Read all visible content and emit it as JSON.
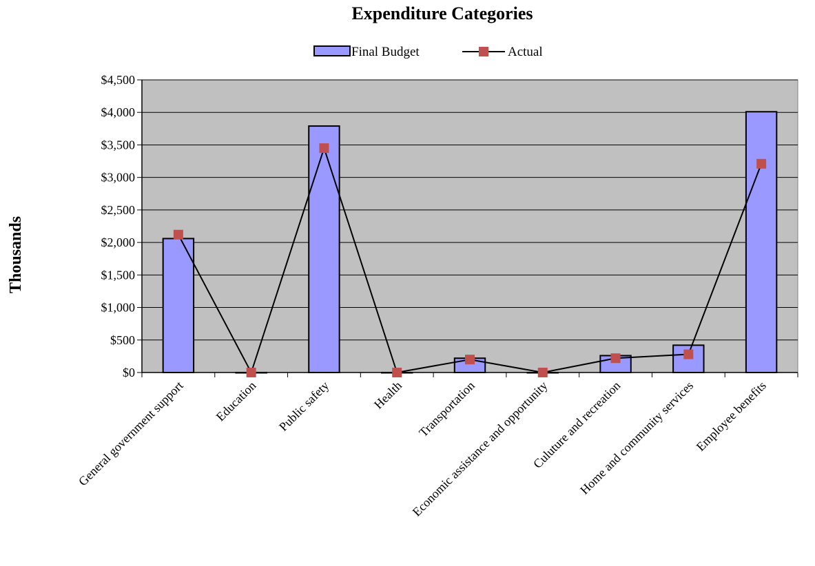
{
  "chart_data": {
    "type": "bar",
    "title": "Expenditure Categories",
    "xlabel": "",
    "ylabel": "Thousands",
    "ylim": [
      0,
      4500
    ],
    "yticks": [
      0,
      500,
      1000,
      1500,
      2000,
      2500,
      3000,
      3500,
      4000,
      4500
    ],
    "ytick_labels": [
      "$0",
      "$500",
      "$1,000",
      "$1,500",
      "$2,000",
      "$2,500",
      "$3,000",
      "$3,500",
      "$4,000",
      "$4,500"
    ],
    "grid": true,
    "legend_position": "top-center",
    "plot_background": "#c0c0c0",
    "categories": [
      "General government support",
      "Education",
      "Public safety",
      "Health",
      "Transportation",
      "Economic assistance and opportunity",
      "Culuture and recreation",
      "Home and community services",
      "Employee benefits"
    ],
    "series": [
      {
        "name": "Final Budget",
        "type": "bar",
        "color": "#9999ff",
        "values": [
          2060,
          0,
          3790,
          0,
          220,
          0,
          260,
          420,
          4010
        ]
      },
      {
        "name": "Actual",
        "type": "line",
        "color": "#000000",
        "marker_color": "#c0504d",
        "values": [
          2120,
          0,
          3450,
          0,
          200,
          0,
          220,
          280,
          3210
        ]
      }
    ]
  }
}
